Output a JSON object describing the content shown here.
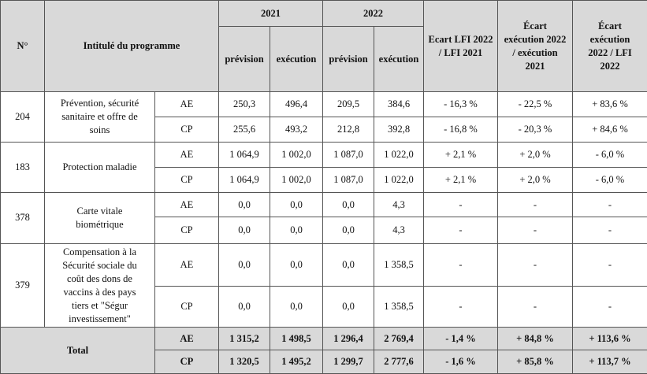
{
  "header": {
    "num": "N°",
    "label": "Intitulé du programme",
    "year1": "2021",
    "year2": "2022",
    "prevision": "prévision",
    "execution": "exécution",
    "ecart1": "Ecart LFI 2022\n/ LFI 2021",
    "ecart2": "Écart\nexécution 2022\n/ exécution\n2021",
    "ecart3": "Écart\nexécution\n2022 / LFI\n2022"
  },
  "programs": [
    {
      "num": "204",
      "label": "Prévention, sécurité\nsanitaire et offre de\nsoins",
      "rows": [
        {
          "type": "AE",
          "values": [
            "250,3",
            "496,4",
            "209,5",
            "384,6",
            "- 16,3 %",
            "- 22,5 %",
            "+ 83,6 %"
          ]
        },
        {
          "type": "CP",
          "values": [
            "255,6",
            "493,2",
            "212,8",
            "392,8",
            "- 16,8 %",
            "- 20,3 %",
            "+ 84,6 %"
          ]
        }
      ]
    },
    {
      "num": "183",
      "label": "Protection maladie",
      "rows": [
        {
          "type": "AE",
          "values": [
            "1 064,9",
            "1 002,0",
            "1 087,0",
            "1 022,0",
            "+ 2,1 %",
            "+ 2,0 %",
            "- 6,0 %"
          ]
        },
        {
          "type": "CP",
          "values": [
            "1 064,9",
            "1 002,0",
            "1 087,0",
            "1 022,0",
            "+ 2,1 %",
            "+ 2,0 %",
            "- 6,0 %"
          ]
        }
      ]
    },
    {
      "num": "378",
      "label": "Carte vitale\nbiométrique",
      "rows": [
        {
          "type": "AE",
          "values": [
            "0,0",
            "0,0",
            "0,0",
            "4,3",
            "-",
            "-",
            "-"
          ]
        },
        {
          "type": "CP",
          "values": [
            "0,0",
            "0,0",
            "0,0",
            "4,3",
            "-",
            "-",
            "-"
          ]
        }
      ]
    },
    {
      "num": "379",
      "label": "Compensation à la\nSécurité sociale du\ncoût des dons de\nvaccins à des pays\ntiers et \"Ségur\ninvestissement\"",
      "rows": [
        {
          "type": "AE",
          "values": [
            "0,0",
            "0,0",
            "0,0",
            "1 358,5",
            "-",
            "-",
            "-"
          ]
        },
        {
          "type": "CP",
          "values": [
            "0,0",
            "0,0",
            "0,0",
            "1 358,5",
            "-",
            "-",
            "-"
          ]
        }
      ]
    }
  ],
  "total": {
    "label": "Total",
    "rows": [
      {
        "type": "AE",
        "values": [
          "1 315,2",
          "1 498,5",
          "1 296,4",
          "2 769,4",
          "- 1,4 %",
          "+ 84,8 %",
          "+ 113,6 %"
        ]
      },
      {
        "type": "CP",
        "values": [
          "1 320,5",
          "1 495,2",
          "1 299,7",
          "2 777,6",
          "- 1,6 %",
          "+ 85,8 %",
          "+ 113,7 %"
        ]
      }
    ]
  }
}
